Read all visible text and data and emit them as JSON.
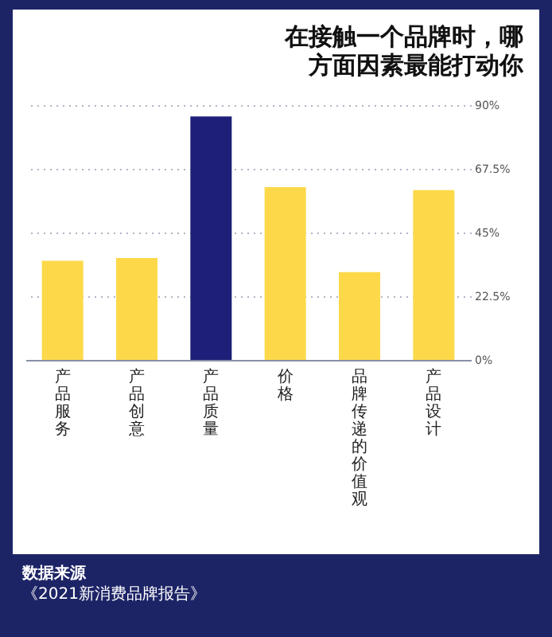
{
  "chart_data": {
    "type": "bar",
    "title": "在接触一个品牌时，哪方面因素最能打动你",
    "categories": [
      "产品服务",
      "产品创意",
      "产品质量",
      "价格",
      "品牌传递的价值观",
      "产品设计"
    ],
    "values": [
      35,
      36,
      86,
      61,
      31,
      60
    ],
    "colors": [
      "#fdd94a",
      "#fdd94a",
      "#1e1f78",
      "#fdd94a",
      "#fdd94a",
      "#fdd94a"
    ],
    "ylim": [
      0,
      90
    ],
    "yticks": [
      {
        "value": 0,
        "label": "0%"
      },
      {
        "value": 22.5,
        "label": "22.5%"
      },
      {
        "value": 45,
        "label": "45%"
      },
      {
        "value": 67.5,
        "label": "67.5%"
      },
      {
        "value": 90,
        "label": "90%"
      }
    ],
    "grid": "y",
    "annotations": [
      "数据来源",
      "《2021新消费品牌报告》"
    ]
  }
}
